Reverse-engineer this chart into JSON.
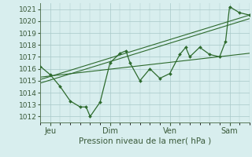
{
  "background_color": "#d8eeee",
  "grid_color": "#a8c8c8",
  "line_color": "#2d6a2d",
  "marker_color": "#2d6a2d",
  "xlabel": "Pression niveau de la mer( hPa )",
  "ylim": [
    1011.5,
    1021.5
  ],
  "yticks": [
    1012,
    1013,
    1014,
    1015,
    1016,
    1017,
    1018,
    1019,
    1020,
    1021
  ],
  "xtick_labels": [
    "Jeu",
    "Dim",
    "Ven",
    "Sam"
  ],
  "xtick_positions": [
    0.5,
    3.5,
    6.5,
    9.5
  ],
  "xlim": [
    0.0,
    10.5
  ],
  "series1_x": [
    0.0,
    0.5,
    1.0,
    1.5,
    2.0,
    2.3,
    2.5,
    3.0,
    3.5,
    4.0,
    4.3,
    4.5,
    5.0,
    5.5,
    6.0,
    6.5,
    7.0,
    7.3,
    7.5,
    8.0,
    8.5,
    9.0,
    9.3,
    9.5,
    10.0,
    10.5
  ],
  "series1_y": [
    1016.2,
    1015.5,
    1014.5,
    1013.3,
    1012.8,
    1012.8,
    1012.0,
    1013.2,
    1016.5,
    1017.3,
    1017.5,
    1016.5,
    1015.0,
    1016.0,
    1015.2,
    1015.6,
    1017.2,
    1017.8,
    1017.0,
    1017.8,
    1017.2,
    1017.0,
    1018.3,
    1021.2,
    1020.7,
    1020.5
  ],
  "trend1_x": [
    0.0,
    10.5
  ],
  "trend1_y": [
    1015.3,
    1017.3
  ],
  "trend2_x": [
    0.0,
    10.5
  ],
  "trend2_y": [
    1015.1,
    1020.5
  ],
  "trend3_x": [
    0.0,
    10.5
  ],
  "trend3_y": [
    1014.8,
    1020.2
  ],
  "xlabel_fontsize": 7.5,
  "ytick_fontsize": 6.5,
  "xtick_fontsize": 7
}
